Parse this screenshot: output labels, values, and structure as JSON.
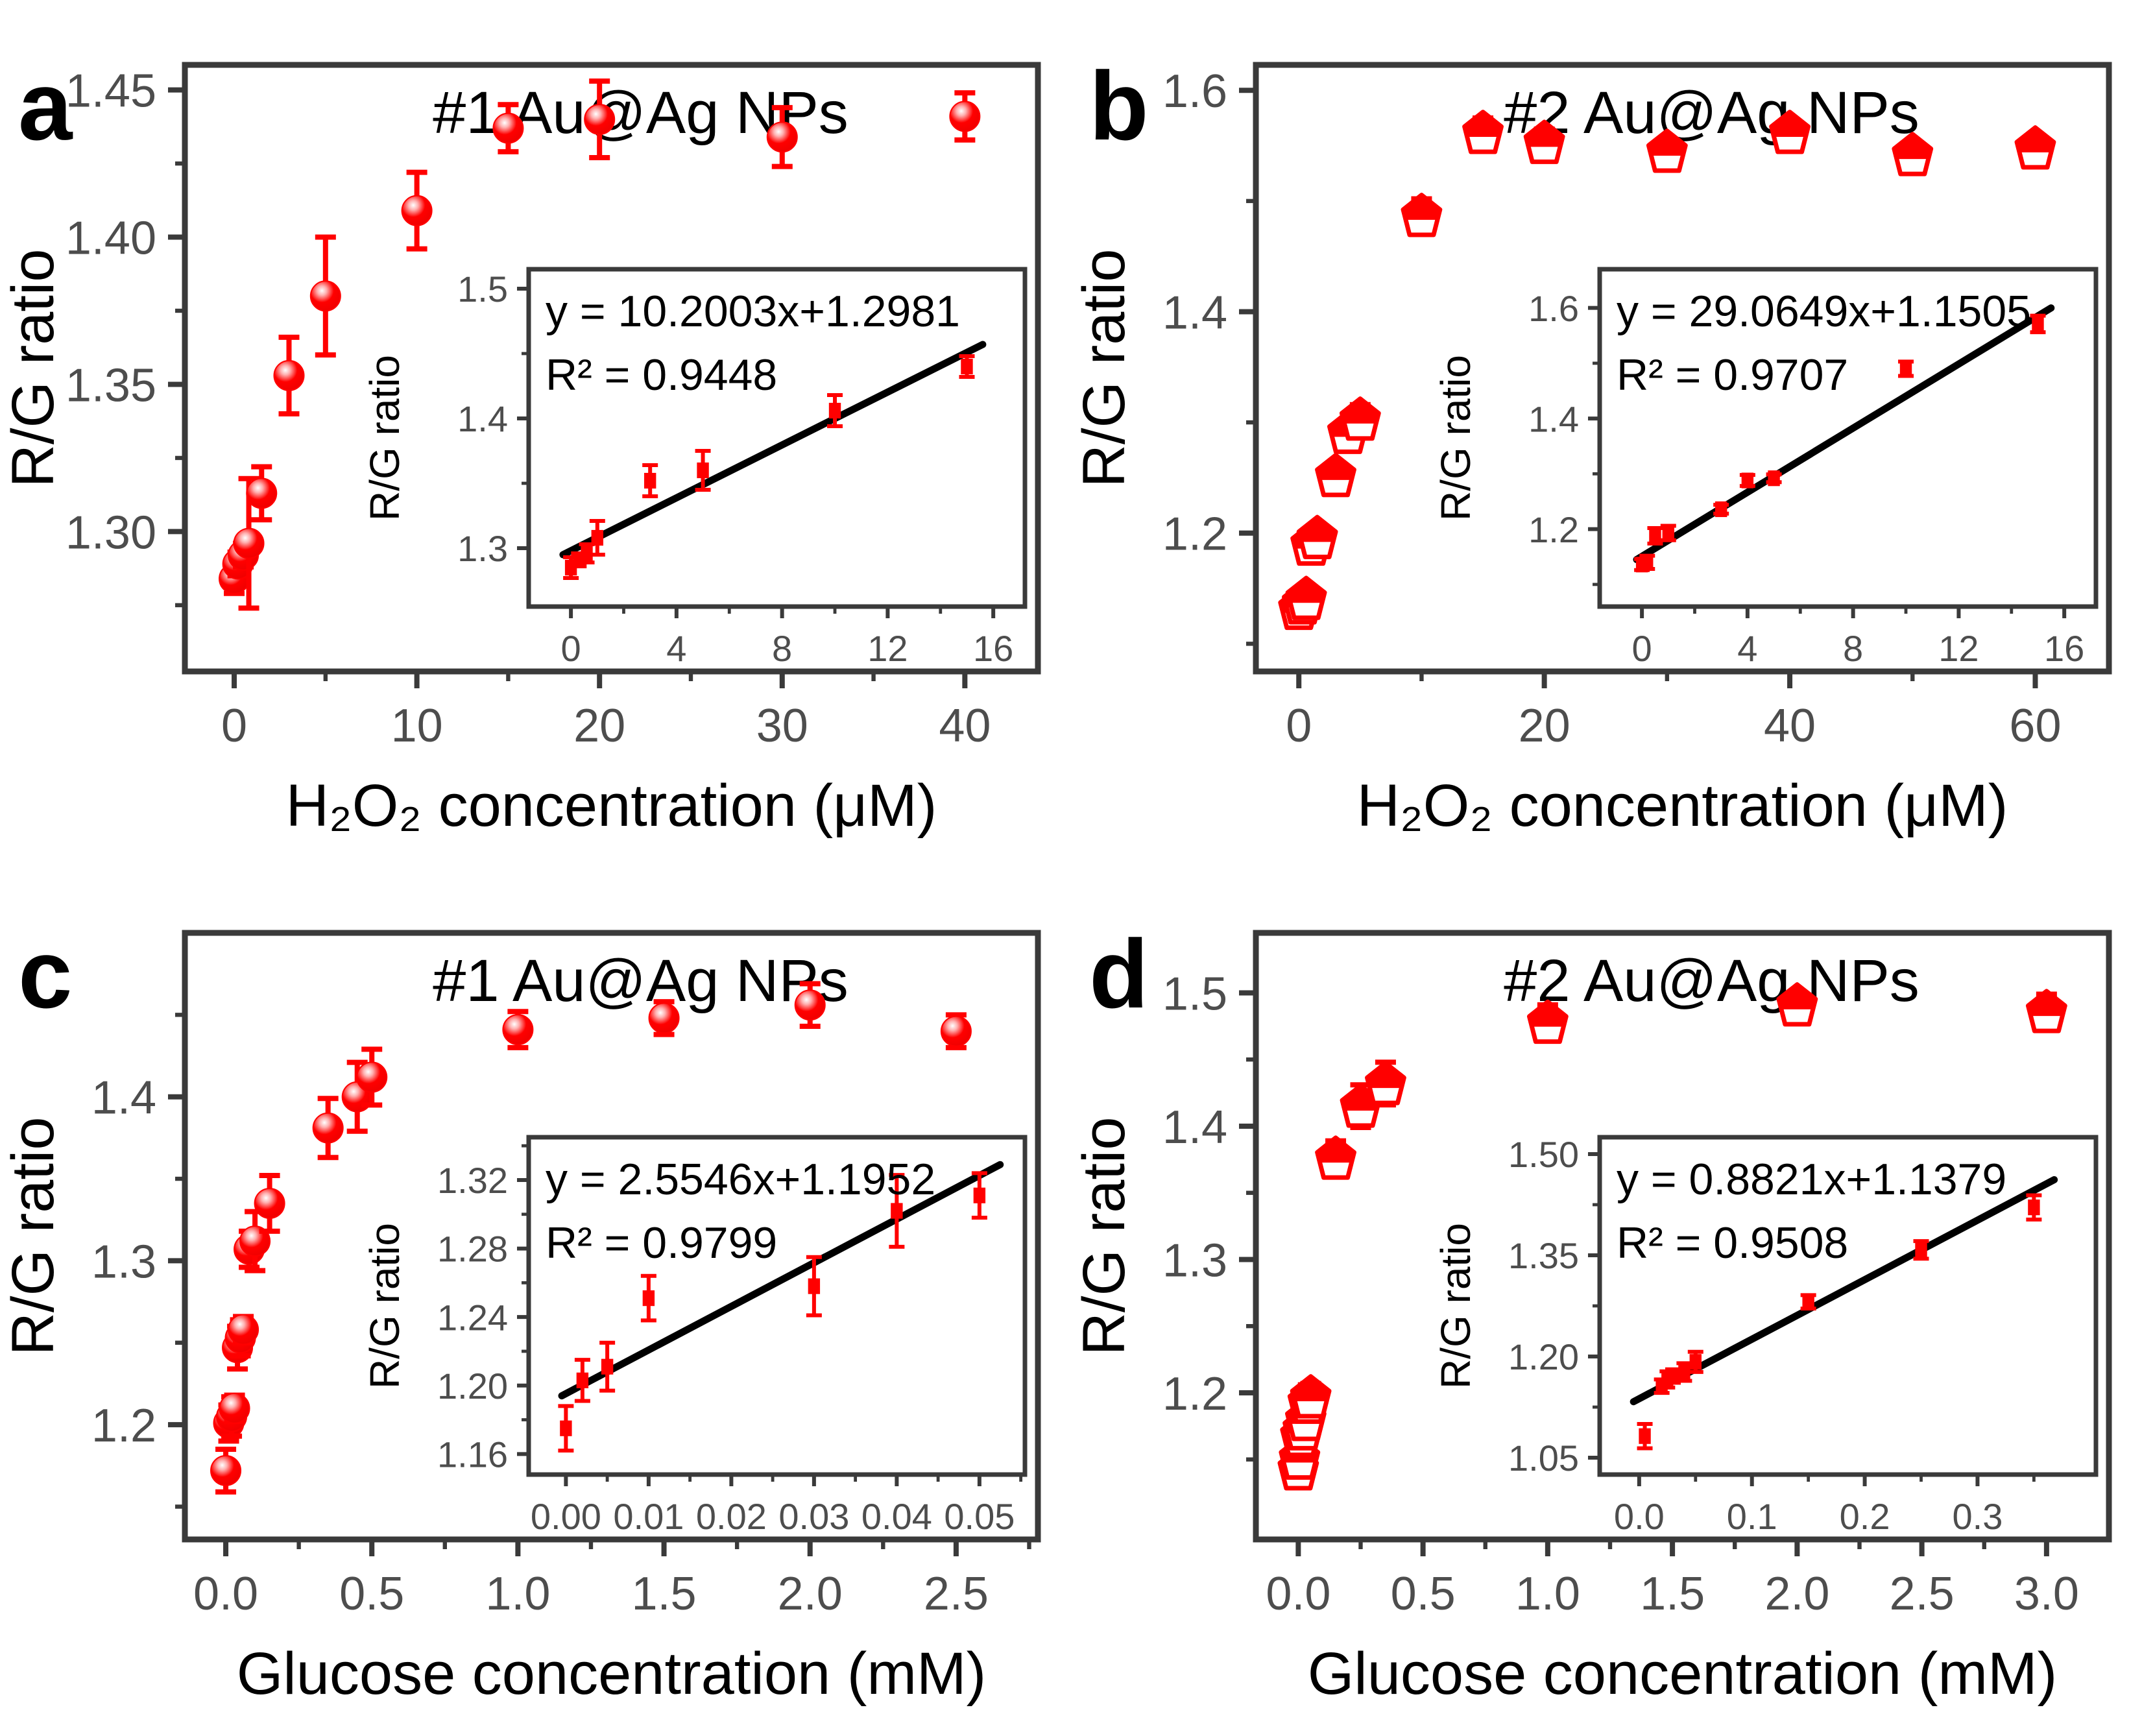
{
  "figure": {
    "background": "#ffffff",
    "accent_color": "#ff0000",
    "frame_color": "#3a3a3a",
    "tick_label_color": "#4d4d4d",
    "text_color": "#000000",
    "fit_line_color": "#000000"
  },
  "chart_data": [
    {
      "panel": "a",
      "type": "scatter",
      "letter": "a",
      "title": "#1 Au@Ag NPs",
      "xlabel": "H₂O₂ concentration (μM)",
      "ylabel": "R/G ratio",
      "marker": "sphere",
      "legend": "none",
      "grid": false,
      "main": {
        "xlim": [
          -2.7,
          44.0
        ],
        "ylim": [
          1.2525,
          1.4585
        ],
        "xticks": {
          "values": [
            0,
            10,
            20,
            30,
            40
          ],
          "labels": [
            "0",
            "10",
            "20",
            "30",
            "40"
          ]
        },
        "yticks": {
          "values": [
            1.3,
            1.35,
            1.4,
            1.45
          ],
          "labels": [
            "1.30",
            "1.35",
            "1.40",
            "1.45"
          ]
        },
        "xminor": [
          5,
          15,
          25,
          35
        ],
        "yminor": [
          1.275,
          1.325,
          1.375,
          1.425
        ],
        "points": [
          [
            0,
            1.284,
            0.005
          ],
          [
            0.2,
            1.289,
            0.004
          ],
          [
            0.5,
            1.292,
            0.004
          ],
          [
            0.8,
            1.296,
            0.022
          ],
          [
            1.5,
            1.313,
            0.009
          ],
          [
            3,
            1.353,
            0.013
          ],
          [
            5,
            1.38,
            0.02
          ],
          [
            10,
            1.409,
            0.013
          ],
          [
            15,
            1.437,
            0.008
          ],
          [
            20,
            1.44,
            0.013
          ],
          [
            30,
            1.434,
            0.01
          ],
          [
            40,
            1.441,
            0.008
          ]
        ]
      },
      "inset": {
        "equation": "y = 10.2003x+1.2981",
        "r2": "R² = 0.9448",
        "ylabel": "R/G ratio",
        "xlim": [
          -1.6,
          17.2
        ],
        "ylim": [
          1.255,
          1.515
        ],
        "xticks": {
          "values": [
            0,
            4,
            8,
            12,
            16
          ],
          "labels": [
            "0",
            "4",
            "8",
            "12",
            "16"
          ]
        },
        "yticks": {
          "values": [
            1.3,
            1.4,
            1.5
          ],
          "labels": [
            "1.3",
            "1.4",
            "1.5"
          ]
        },
        "xminor": [
          2,
          6,
          10,
          14
        ],
        "yminor": [
          1.35,
          1.45
        ],
        "fit": [
          [
            -0.3,
            1.295
          ],
          [
            15.6,
            1.457
          ]
        ],
        "points": [
          [
            0,
            1.285,
            0.008
          ],
          [
            0.3,
            1.291,
            0.005
          ],
          [
            0.6,
            1.296,
            0.007
          ],
          [
            1,
            1.308,
            0.013
          ],
          [
            3,
            1.352,
            0.012
          ],
          [
            5,
            1.36,
            0.015
          ],
          [
            10,
            1.406,
            0.012
          ],
          [
            15,
            1.44,
            0.008
          ]
        ]
      }
    },
    {
      "panel": "b",
      "type": "scatter",
      "letter": "b",
      "title": "#2 Au@Ag NPs",
      "xlabel": "H₂O₂ concentration (μM)",
      "ylabel": "R/G ratio",
      "marker": "pentagon",
      "legend": "none",
      "grid": false,
      "main": {
        "xlim": [
          -3.5,
          66.0
        ],
        "ylim": [
          1.075,
          1.623
        ],
        "xticks": {
          "values": [
            0,
            20,
            40,
            60
          ],
          "labels": [
            "0",
            "20",
            "40",
            "60"
          ]
        },
        "yticks": {
          "values": [
            1.2,
            1.4,
            1.6
          ],
          "labels": [
            "1.2",
            "1.4",
            "1.6"
          ]
        },
        "xminor": [
          10,
          30,
          50
        ],
        "yminor": [
          1.1,
          1.3,
          1.5
        ],
        "points": [
          [
            0,
            1.132,
            0.012
          ],
          [
            0.3,
            1.137,
            0.008
          ],
          [
            0.6,
            1.141,
            0.006
          ],
          [
            1,
            1.19,
            0.013
          ],
          [
            1.5,
            1.196,
            0.008
          ],
          [
            3,
            1.252,
            0.01
          ],
          [
            4,
            1.291,
            0.01
          ],
          [
            5,
            1.303,
            0.013
          ],
          [
            10,
            1.487,
            0.015
          ],
          [
            15,
            1.562,
            0.013
          ],
          [
            20,
            1.553,
            0.012
          ],
          [
            30,
            1.545,
            0.008
          ],
          [
            40,
            1.562,
            0.01
          ],
          [
            50,
            1.542,
            0.01
          ],
          [
            60,
            1.548,
            0.008
          ]
        ]
      },
      "inset": {
        "equation": "y = 29.0649x+1.1505",
        "r2": "R² = 0.9707",
        "ylabel": "R/G ratio",
        "xlim": [
          -1.6,
          17.2
        ],
        "ylim": [
          1.06,
          1.67
        ],
        "xticks": {
          "values": [
            0,
            4,
            8,
            12,
            16
          ],
          "labels": [
            "0",
            "4",
            "8",
            "12",
            "16"
          ]
        },
        "yticks": {
          "values": [
            1.2,
            1.4,
            1.6
          ],
          "labels": [
            "1.2",
            "1.4",
            "1.6"
          ]
        },
        "xminor": [
          2,
          6,
          10,
          14
        ],
        "yminor": [
          1.1,
          1.3,
          1.5
        ],
        "fit": [
          [
            -0.2,
            1.145
          ],
          [
            15.5,
            1.6
          ]
        ],
        "points": [
          [
            0,
            1.136,
            0.01
          ],
          [
            0.2,
            1.14,
            0.012
          ],
          [
            0.5,
            1.188,
            0.014
          ],
          [
            1,
            1.193,
            0.013
          ],
          [
            3,
            1.236,
            0.008
          ],
          [
            4,
            1.288,
            0.01
          ],
          [
            5,
            1.292,
            0.007
          ],
          [
            10,
            1.49,
            0.013
          ],
          [
            15,
            1.571,
            0.015
          ]
        ]
      }
    },
    {
      "panel": "c",
      "type": "scatter",
      "letter": "c",
      "title": "#1 Au@Ag NPs",
      "xlabel": "Glucose concentration (mM)",
      "ylabel": "R/G ratio",
      "marker": "sphere",
      "legend": "none",
      "grid": false,
      "main": {
        "xlim": [
          -0.14,
          2.78
        ],
        "ylim": [
          1.13,
          1.5
        ],
        "xticks": {
          "values": [
            0.0,
            0.5,
            1.0,
            1.5,
            2.0,
            2.5
          ],
          "labels": [
            "0.0",
            "0.5",
            "1.0",
            "1.5",
            "2.0",
            "2.5"
          ]
        },
        "yticks": {
          "values": [
            1.2,
            1.3,
            1.4
          ],
          "labels": [
            "1.2",
            "1.3",
            "1.4"
          ]
        },
        "xminor": [
          0.25,
          0.75,
          1.25,
          1.75,
          2.25,
          2.75
        ],
        "yminor": [
          1.15,
          1.25,
          1.35,
          1.45
        ],
        "points": [
          [
            0,
            1.172,
            0.013
          ],
          [
            0.01,
            1.201,
            0.011
          ],
          [
            0.02,
            1.205,
            0.012
          ],
          [
            0.03,
            1.21,
            0.008
          ],
          [
            0.04,
            1.247,
            0.013
          ],
          [
            0.05,
            1.253,
            0.011
          ],
          [
            0.06,
            1.258,
            0.008
          ],
          [
            0.08,
            1.307,
            0.011
          ],
          [
            0.1,
            1.312,
            0.018
          ],
          [
            0.15,
            1.335,
            0.017
          ],
          [
            0.35,
            1.381,
            0.018
          ],
          [
            0.45,
            1.4,
            0.021
          ],
          [
            0.5,
            1.412,
            0.017
          ],
          [
            1.0,
            1.441,
            0.011
          ],
          [
            1.5,
            1.448,
            0.01
          ],
          [
            2.0,
            1.456,
            0.013
          ],
          [
            2.5,
            1.44,
            0.01
          ]
        ]
      },
      "inset": {
        "equation": "y = 2.5546x+1.1952",
        "r2": "R² = 0.9799",
        "ylabel": "R/G ratio",
        "xlim": [
          -0.0045,
          0.0555
        ],
        "ylim": [
          1.148,
          1.345
        ],
        "xticks": {
          "values": [
            0.0,
            0.01,
            0.02,
            0.03,
            0.04,
            0.05
          ],
          "labels": [
            "0.00",
            "0.01",
            "0.02",
            "0.03",
            "0.04",
            "0.05"
          ]
        },
        "yticks": {
          "values": [
            1.16,
            1.2,
            1.24,
            1.28,
            1.32
          ],
          "labels": [
            "1.16",
            "1.20",
            "1.24",
            "1.28",
            "1.32"
          ]
        },
        "xminor": [
          0.005,
          0.015,
          0.025,
          0.035,
          0.045,
          0.055
        ],
        "yminor": [
          1.18,
          1.22,
          1.26,
          1.3,
          1.34
        ],
        "fit": [
          [
            -0.0005,
            1.194
          ],
          [
            0.0525,
            1.329
          ]
        ],
        "points": [
          [
            0.0,
            1.175,
            0.013
          ],
          [
            0.002,
            1.203,
            0.012
          ],
          [
            0.005,
            1.211,
            0.014
          ],
          [
            0.01,
            1.251,
            0.013
          ],
          [
            0.03,
            1.258,
            0.017
          ],
          [
            0.04,
            1.302,
            0.021
          ],
          [
            0.05,
            1.311,
            0.013
          ]
        ]
      }
    },
    {
      "panel": "d",
      "type": "scatter",
      "letter": "d",
      "title": "#2 Au@Ag NPs",
      "xlabel": "Glucose concentration (mM)",
      "ylabel": "R/G ratio",
      "marker": "pentagon",
      "legend": "none",
      "grid": false,
      "main": {
        "xlim": [
          -0.17,
          3.25
        ],
        "ylim": [
          1.09,
          1.545
        ],
        "xticks": {
          "values": [
            0.0,
            0.5,
            1.0,
            1.5,
            2.0,
            2.5,
            3.0
          ],
          "labels": [
            "0.0",
            "0.5",
            "1.0",
            "1.5",
            "2.0",
            "2.5",
            "3.0"
          ]
        },
        "yticks": {
          "values": [
            1.2,
            1.3,
            1.4,
            1.5
          ],
          "labels": [
            "1.2",
            "1.3",
            "1.4",
            "1.5"
          ]
        },
        "xminor": [
          0.25,
          0.75,
          1.25,
          1.75,
          2.25,
          2.75
        ],
        "yminor": [
          1.15,
          1.25,
          1.35,
          1.45
        ],
        "points": [
          [
            0,
            1.143,
            0.008
          ],
          [
            0.005,
            1.151,
            0.007
          ],
          [
            0.01,
            1.168,
            0.009
          ],
          [
            0.02,
            1.173,
            0.011
          ],
          [
            0.03,
            1.18,
            0.008
          ],
          [
            0.04,
            1.193,
            0.013
          ],
          [
            0.05,
            1.197,
            0.01
          ],
          [
            0.15,
            1.376,
            0.013
          ],
          [
            0.25,
            1.415,
            0.016
          ],
          [
            0.35,
            1.432,
            0.016
          ],
          [
            1.0,
            1.478,
            0.013
          ],
          [
            2.0,
            1.491,
            0.009
          ],
          [
            3.0,
            1.486,
            0.013
          ]
        ]
      },
      "inset": {
        "equation": "y = 0.8821x+1.1379",
        "r2": "R² = 0.9508",
        "ylabel": "R/G ratio",
        "xlim": [
          -0.035,
          0.405
        ],
        "ylim": [
          1.025,
          1.525
        ],
        "xticks": {
          "values": [
            0.0,
            0.1,
            0.2,
            0.3
          ],
          "labels": [
            "0.0",
            "0.1",
            "0.2",
            "0.3"
          ]
        },
        "yticks": {
          "values": [
            1.05,
            1.2,
            1.35,
            1.5
          ],
          "labels": [
            "1.05",
            "1.20",
            "1.35",
            "1.50"
          ]
        },
        "xminor": [
          0.05,
          0.15,
          0.25,
          0.35
        ],
        "yminor": [
          1.125,
          1.275,
          1.425
        ],
        "fit": [
          [
            -0.005,
            1.133
          ],
          [
            0.368,
            1.462
          ]
        ],
        "points": [
          [
            0.005,
            1.082,
            0.018
          ],
          [
            0.02,
            1.156,
            0.01
          ],
          [
            0.025,
            1.166,
            0.012
          ],
          [
            0.03,
            1.171,
            0.01
          ],
          [
            0.04,
            1.177,
            0.013
          ],
          [
            0.05,
            1.192,
            0.015
          ],
          [
            0.15,
            1.281,
            0.01
          ],
          [
            0.25,
            1.358,
            0.013
          ],
          [
            0.35,
            1.421,
            0.018
          ]
        ]
      }
    }
  ]
}
